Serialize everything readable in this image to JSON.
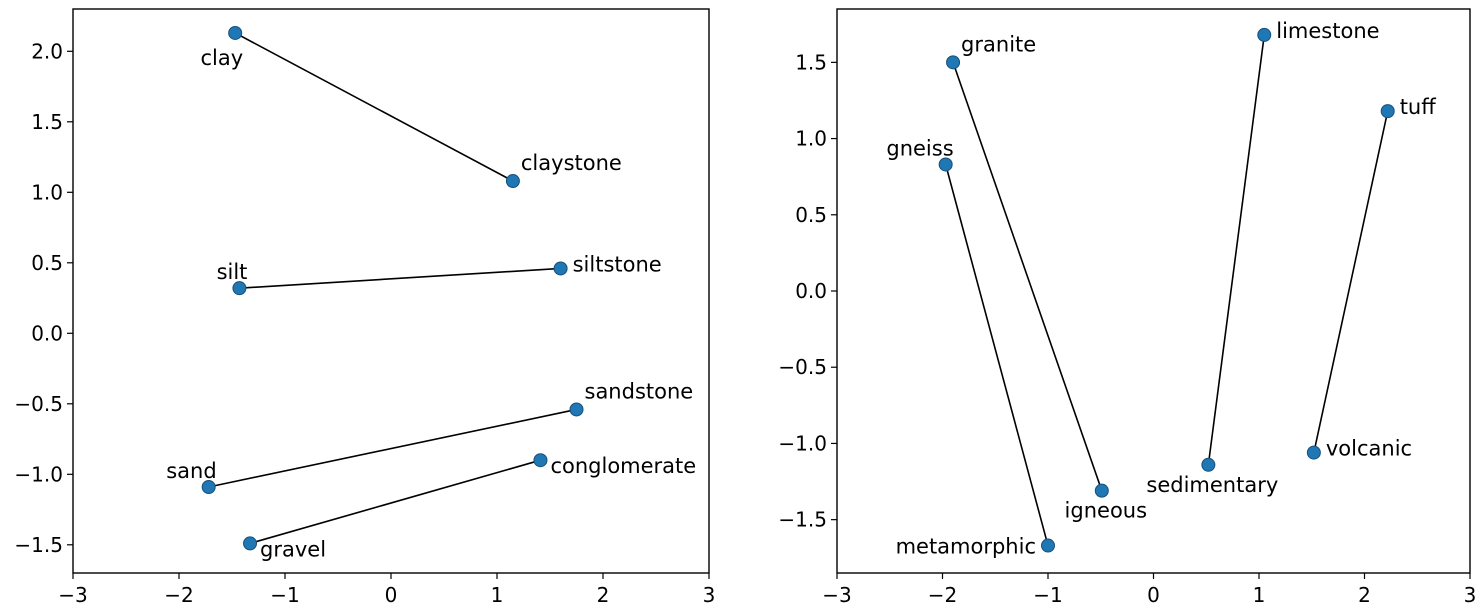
{
  "chart_data": [
    {
      "type": "scatter",
      "title": "",
      "xlabel": "",
      "ylabel": "",
      "xlim": [
        -3,
        3
      ],
      "ylim": [
        -1.7,
        2.3
      ],
      "xticks": [
        -3,
        -2,
        -1,
        0,
        1,
        2,
        3
      ],
      "yticks": [
        -1.5,
        -1.0,
        -0.5,
        0.0,
        0.5,
        1.0,
        1.5,
        2.0
      ],
      "xtick_labels": [
        "−3",
        "−2",
        "−1",
        "0",
        "1",
        "2",
        "3"
      ],
      "ytick_labels": [
        "−1.5",
        "−1.0",
        "−0.5",
        "0.0",
        "0.5",
        "1.0",
        "1.5",
        "2.0"
      ],
      "grid": false,
      "points": [
        {
          "label": "clay",
          "x": -1.47,
          "y": 2.13,
          "label_pos": "below-left"
        },
        {
          "label": "claystone",
          "x": 1.15,
          "y": 1.08,
          "label_pos": "above-right"
        },
        {
          "label": "silt",
          "x": -1.43,
          "y": 0.32,
          "label_pos": "above-left"
        },
        {
          "label": "siltstone",
          "x": 1.6,
          "y": 0.46,
          "label_pos": "right"
        },
        {
          "label": "sand",
          "x": -1.72,
          "y": -1.09,
          "label_pos": "above-left"
        },
        {
          "label": "sandstone",
          "x": 1.75,
          "y": -0.54,
          "label_pos": "above-right"
        },
        {
          "label": "gravel",
          "x": -1.33,
          "y": -1.49,
          "label_pos": "below-right"
        },
        {
          "label": "conglomerate",
          "x": 1.41,
          "y": -0.9,
          "label_pos": "below-right"
        }
      ],
      "pairs": [
        [
          "clay",
          "claystone"
        ],
        [
          "silt",
          "siltstone"
        ],
        [
          "sand",
          "sandstone"
        ],
        [
          "gravel",
          "conglomerate"
        ]
      ]
    },
    {
      "type": "scatter",
      "title": "",
      "xlabel": "",
      "ylabel": "",
      "xlim": [
        -3,
        3
      ],
      "ylim": [
        -1.85,
        1.85
      ],
      "xticks": [
        -3,
        -2,
        -1,
        0,
        1,
        2,
        3
      ],
      "yticks": [
        -1.5,
        -1.0,
        -0.5,
        0.0,
        0.5,
        1.0,
        1.5
      ],
      "xtick_labels": [
        "−3",
        "−2",
        "−1",
        "0",
        "1",
        "2",
        "3"
      ],
      "ytick_labels": [
        "−1.5",
        "−1.0",
        "−0.5",
        "0.0",
        "0.5",
        "1.0",
        "1.5"
      ],
      "grid": false,
      "points": [
        {
          "label": "granite",
          "x": -1.9,
          "y": 1.5,
          "label_pos": "above-right"
        },
        {
          "label": "igneous",
          "x": -0.49,
          "y": -1.31,
          "label_pos": "below"
        },
        {
          "label": "gneiss",
          "x": -1.97,
          "y": 0.83,
          "label_pos": "above-left"
        },
        {
          "label": "metamorphic",
          "x": -1.0,
          "y": -1.67,
          "label_pos": "left"
        },
        {
          "label": "limestone",
          "x": 1.05,
          "y": 1.68,
          "label_pos": "right"
        },
        {
          "label": "sedimentary",
          "x": 0.52,
          "y": -1.14,
          "label_pos": "below"
        },
        {
          "label": "tuff",
          "x": 2.22,
          "y": 1.18,
          "label_pos": "right"
        },
        {
          "label": "volcanic",
          "x": 1.52,
          "y": -1.06,
          "label_pos": "right"
        }
      ],
      "pairs": [
        [
          "granite",
          "igneous"
        ],
        [
          "gneiss",
          "metamorphic"
        ],
        [
          "limestone",
          "sedimentary"
        ],
        [
          "tuff",
          "volcanic"
        ]
      ]
    }
  ],
  "colors": {
    "marker_fill": "#1f77b4",
    "marker_edge": "#174f7a",
    "line": "#000000"
  }
}
